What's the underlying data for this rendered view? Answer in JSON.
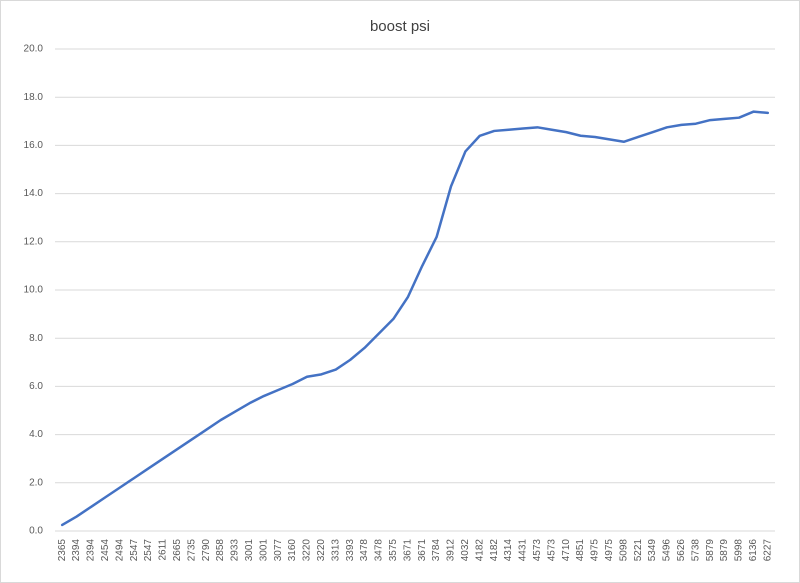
{
  "chart_data": {
    "type": "line",
    "title": "boost psi",
    "categories": [
      "2365",
      "2394",
      "2394",
      "2454",
      "2494",
      "2547",
      "2547",
      "2611",
      "2665",
      "2735",
      "2790",
      "2858",
      "2933",
      "3001",
      "3001",
      "3077",
      "3160",
      "3220",
      "3220",
      "3313",
      "3393",
      "3478",
      "3478",
      "3575",
      "3671",
      "3671",
      "3784",
      "3912",
      "4032",
      "4182",
      "4182",
      "4314",
      "4431",
      "4573",
      "4573",
      "4710",
      "4851",
      "4975",
      "4975",
      "5098",
      "5221",
      "5349",
      "5496",
      "5626",
      "5738",
      "5879",
      "5879",
      "5998",
      "6136",
      "6227"
    ],
    "series": [
      {
        "name": "boost psi",
        "color": "#4472c4",
        "values": [
          0.25,
          0.6,
          1.0,
          1.4,
          1.8,
          2.2,
          2.6,
          3.0,
          3.4,
          3.8,
          4.2,
          4.6,
          4.95,
          5.3,
          5.6,
          5.85,
          6.1,
          6.4,
          6.5,
          6.7,
          7.1,
          7.6,
          8.2,
          8.8,
          9.7,
          11.0,
          12.2,
          14.3,
          15.75,
          16.4,
          16.6,
          16.65,
          16.7,
          16.75,
          16.65,
          16.55,
          16.4,
          16.35,
          16.25,
          16.15,
          16.35,
          16.55,
          16.75,
          16.85,
          16.9,
          17.05,
          17.1,
          17.15,
          17.4,
          17.35
        ]
      }
    ],
    "ylim": [
      0,
      20
    ],
    "yticks": [
      {
        "value": 0,
        "label": "0.0"
      },
      {
        "value": 2,
        "label": "2.0"
      },
      {
        "value": 4,
        "label": "4.0"
      },
      {
        "value": 6,
        "label": "6.0"
      },
      {
        "value": 8,
        "label": "8.0"
      },
      {
        "value": 10,
        "label": "10.0"
      },
      {
        "value": 12,
        "label": "12.0"
      },
      {
        "value": 14,
        "label": "14.0"
      },
      {
        "value": 16,
        "label": "16.0"
      },
      {
        "value": 18,
        "label": "18.0"
      },
      {
        "value": 20,
        "label": "20.0"
      }
    ],
    "grid": true
  }
}
